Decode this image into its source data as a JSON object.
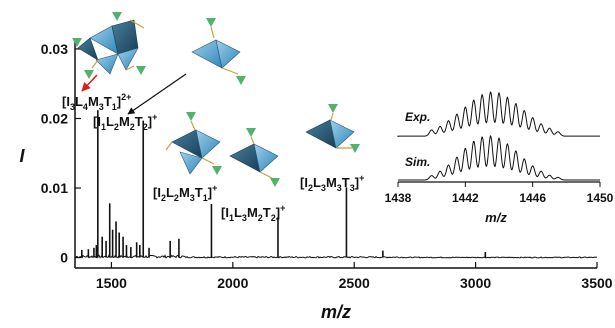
{
  "chart_data": [
    {
      "type": "line",
      "xlabel": "m/z",
      "ylabel": "I",
      "xlim": [
        1350,
        3500
      ],
      "ylim": [
        -0.0015,
        0.031
      ],
      "x_ticks": [
        "1500",
        "2000",
        "2500",
        "3000",
        "3500"
      ],
      "y_ticks": [
        "0",
        "0.01",
        "0.02",
        "0.03"
      ],
      "peaks": [
        {
          "x": 1378,
          "y": 0.0011
        },
        {
          "x": 1405,
          "y": 0.0012
        },
        {
          "x": 1428,
          "y": 0.0014
        },
        {
          "x": 1438,
          "y": 0.0018
        },
        {
          "x": 1444,
          "y": 0.0212
        },
        {
          "x": 1462,
          "y": 0.003
        },
        {
          "x": 1478,
          "y": 0.0024
        },
        {
          "x": 1493,
          "y": 0.0078
        },
        {
          "x": 1505,
          "y": 0.004
        },
        {
          "x": 1519,
          "y": 0.0052
        },
        {
          "x": 1532,
          "y": 0.0036
        },
        {
          "x": 1548,
          "y": 0.003
        },
        {
          "x": 1562,
          "y": 0.0018
        },
        {
          "x": 1580,
          "y": 0.0015
        },
        {
          "x": 1604,
          "y": 0.0022
        },
        {
          "x": 1617,
          "y": 0.0018
        },
        {
          "x": 1631,
          "y": 0.0197
        },
        {
          "x": 1655,
          "y": 0.0014
        },
        {
          "x": 1742,
          "y": 0.0024
        },
        {
          "x": 1778,
          "y": 0.0027
        },
        {
          "x": 1912,
          "y": 0.0077
        },
        {
          "x": 2186,
          "y": 0.0058
        },
        {
          "x": 2468,
          "y": 0.0101
        },
        {
          "x": 2618,
          "y": 0.001
        },
        {
          "x": 3040,
          "y": 0.0008
        }
      ],
      "annotations": [
        {
          "base": "[I",
          "parts": [
            [
              "3",
              "sub"
            ],
            [
              "L",
              ""
            ],
            [
              "4",
              "sub"
            ],
            [
              "M",
              ""
            ],
            [
              "3",
              "sub"
            ],
            [
              "T",
              ""
            ],
            [
              "1",
              "sub"
            ],
            [
              "]",
              ""
            ],
            [
              "2+",
              "sup"
            ]
          ]
        },
        {
          "base": "[I",
          "parts": [
            [
              "1",
              "sub"
            ],
            [
              "L",
              ""
            ],
            [
              "2",
              "sub"
            ],
            [
              "M",
              ""
            ],
            [
              "2",
              "sub"
            ],
            [
              "T",
              ""
            ],
            [
              "2",
              "sub"
            ],
            [
              "]",
              ""
            ],
            [
              "+",
              "sup"
            ]
          ]
        },
        {
          "base": "[I",
          "parts": [
            [
              "2",
              "sub"
            ],
            [
              "L",
              ""
            ],
            [
              "2",
              "sub"
            ],
            [
              "M",
              ""
            ],
            [
              "3",
              "sub"
            ],
            [
              "T",
              ""
            ],
            [
              "1",
              "sub"
            ],
            [
              "]",
              ""
            ],
            [
              "+",
              "sup"
            ]
          ]
        },
        {
          "base": "[I",
          "parts": [
            [
              "1",
              "sub"
            ],
            [
              "L",
              ""
            ],
            [
              "3",
              "sub"
            ],
            [
              "M",
              ""
            ],
            [
              "2",
              "sub"
            ],
            [
              "T",
              ""
            ],
            [
              "2",
              "sub"
            ],
            [
              "]",
              ""
            ],
            [
              "+",
              "sup"
            ]
          ]
        },
        {
          "base": "[I",
          "parts": [
            [
              "2",
              "sub"
            ],
            [
              "L",
              ""
            ],
            [
              "3",
              "sub"
            ],
            [
              "M",
              ""
            ],
            [
              "3",
              "sub"
            ],
            [
              "T",
              ""
            ],
            [
              "3",
              "sub"
            ],
            [
              "]",
              ""
            ],
            [
              "+",
              "sup"
            ]
          ]
        }
      ]
    },
    {
      "type": "line",
      "xlabel": "m/z",
      "xlim": [
        1438,
        1450
      ],
      "x_ticks": [
        "1438",
        "1442",
        "1446",
        "1450"
      ],
      "series": [
        {
          "name": "Exp.",
          "peaks": [
            {
              "x": 1440.0,
              "y": 0.14
            },
            {
              "x": 1440.5,
              "y": 0.22
            },
            {
              "x": 1441.0,
              "y": 0.35
            },
            {
              "x": 1441.5,
              "y": 0.5
            },
            {
              "x": 1442.0,
              "y": 0.66
            },
            {
              "x": 1442.5,
              "y": 0.82
            },
            {
              "x": 1443.0,
              "y": 0.94
            },
            {
              "x": 1443.5,
              "y": 1.0
            },
            {
              "x": 1444.0,
              "y": 0.98
            },
            {
              "x": 1444.5,
              "y": 0.88
            },
            {
              "x": 1445.0,
              "y": 0.74
            },
            {
              "x": 1445.5,
              "y": 0.58
            },
            {
              "x": 1446.0,
              "y": 0.42
            },
            {
              "x": 1446.5,
              "y": 0.28
            },
            {
              "x": 1447.0,
              "y": 0.18
            },
            {
              "x": 1447.5,
              "y": 0.1
            }
          ]
        },
        {
          "name": "Sim.",
          "peaks": [
            {
              "x": 1440.0,
              "y": 0.1
            },
            {
              "x": 1440.5,
              "y": 0.2
            },
            {
              "x": 1441.0,
              "y": 0.34
            },
            {
              "x": 1441.5,
              "y": 0.52
            },
            {
              "x": 1442.0,
              "y": 0.72
            },
            {
              "x": 1442.5,
              "y": 0.88
            },
            {
              "x": 1443.0,
              "y": 0.98
            },
            {
              "x": 1443.5,
              "y": 1.0
            },
            {
              "x": 1444.0,
              "y": 0.95
            },
            {
              "x": 1444.5,
              "y": 0.82
            },
            {
              "x": 1445.0,
              "y": 0.66
            },
            {
              "x": 1445.5,
              "y": 0.48
            },
            {
              "x": 1446.0,
              "y": 0.32
            },
            {
              "x": 1446.5,
              "y": 0.2
            },
            {
              "x": 1447.0,
              "y": 0.11
            },
            {
              "x": 1447.5,
              "y": 0.06
            }
          ]
        }
      ]
    }
  ]
}
